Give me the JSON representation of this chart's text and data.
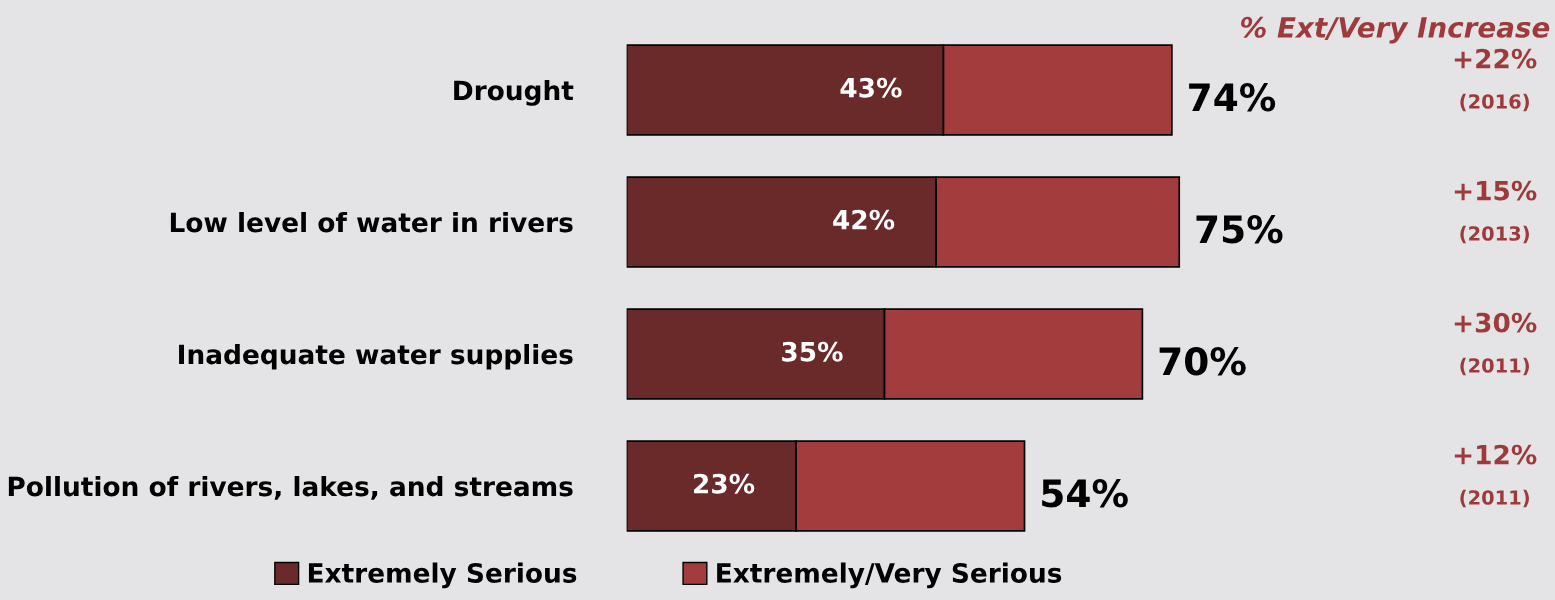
{
  "chart_data": {
    "type": "bar",
    "orientation": "horizontal",
    "stacked": true,
    "categories": [
      "Drought",
      "Low level of water in rivers",
      "Inadequate water supplies",
      "Pollution of rivers, lakes, and streams"
    ],
    "series": [
      {
        "name": "Extremely Serious",
        "color": "#6b2a2a",
        "values": [
          43,
          42,
          35,
          23
        ],
        "value_labels": [
          "43%",
          "42%",
          "35%",
          "23%"
        ]
      },
      {
        "name": "Extremely/Very Serious",
        "color": "#a33c3c",
        "values": [
          31,
          33,
          35,
          31
        ]
      }
    ],
    "totals": [
      "74%",
      "75%",
      "70%",
      "54%"
    ],
    "xlim": [
      0,
      126
    ],
    "tick_labels": "y",
    "grid": false,
    "legend": "bottom",
    "annotations": [
      "% Ext/Very Increase",
      "+22%\n(2016)",
      "+15%\n(2013)",
      "+30%\n(2011)",
      "+12%\n(2011)"
    ]
  }
}
